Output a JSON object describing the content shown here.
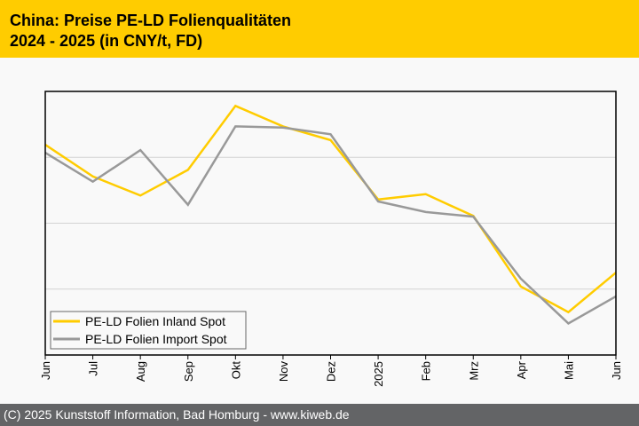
{
  "header": {
    "title_line1": "China: Preise PE-LD Folienqualitäten",
    "title_line2": "2024 - 2025 (in CNY/t, FD)"
  },
  "footer": {
    "text": "(C) 2025 Kunststoff Information, Bad Homburg - www.kiweb.de"
  },
  "colors": {
    "header_bg": "#ffcc00",
    "footer_bg": "#636466",
    "inland": "#ffcc00",
    "import": "#999999"
  },
  "chart_data": {
    "type": "line",
    "title": "China: Preise PE-LD Folienqualitäten 2024 - 2025 (in CNY/t, FD)",
    "xlabel": "",
    "ylabel": "",
    "y_unit_note": "No y-axis tick labels shown; values are relative positions in gridline units (0 = bottom, 4 = top)",
    "ylim": [
      0,
      4
    ],
    "grid": true,
    "legend_position": "bottom-left",
    "categories": [
      "Jun",
      "Jul",
      "Aug",
      "Sep",
      "Okt",
      "Nov",
      "Dez",
      "2025",
      "Feb",
      "Mrz",
      "Apr",
      "Mai",
      "Jun"
    ],
    "series": [
      {
        "name": "PE-LD Folien Inland Spot",
        "color": "#ffcc00",
        "values": [
          3.19,
          2.71,
          2.42,
          2.81,
          3.78,
          3.47,
          3.26,
          2.36,
          2.44,
          2.11,
          1.04,
          0.65,
          1.25
        ]
      },
      {
        "name": "PE-LD Folien Import Spot",
        "color": "#999999",
        "values": [
          3.07,
          2.63,
          3.11,
          2.28,
          3.47,
          3.45,
          3.35,
          2.33,
          2.17,
          2.1,
          1.16,
          0.48,
          0.89
        ]
      }
    ]
  }
}
